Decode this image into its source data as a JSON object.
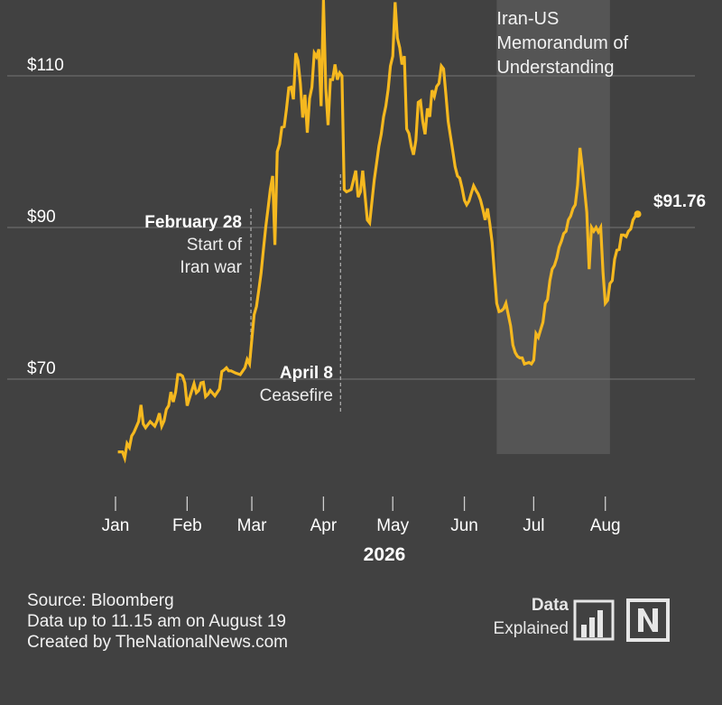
{
  "chart_data": {
    "type": "line",
    "title": "",
    "xlabel": "2026",
    "ylabel": "",
    "y_ticks": [
      {
        "value": 70,
        "label": "$70"
      },
      {
        "value": 90,
        "label": "$90"
      },
      {
        "value": 110,
        "label": "$110"
      }
    ],
    "x_ticks": [
      {
        "value": 0,
        "label": "Jan"
      },
      {
        "value": 31,
        "label": "Feb"
      },
      {
        "value": 59,
        "label": "Mar"
      },
      {
        "value": 90,
        "label": "Apr"
      },
      {
        "value": 120,
        "label": "May"
      },
      {
        "value": 151,
        "label": "Jun"
      },
      {
        "value": 181,
        "label": "Jul"
      },
      {
        "value": 212,
        "label": "Aug"
      }
    ],
    "xlim": [
      0,
      242
    ],
    "ylim": [
      55,
      122
    ],
    "grid": "horizontal",
    "series": [
      {
        "name": "",
        "color": "#f5b81f",
        "points": [
          [
            1,
            60.4
          ],
          [
            3,
            60.4
          ],
          [
            4,
            59.6
          ],
          [
            5,
            61.5
          ],
          [
            6,
            61.0
          ],
          [
            7,
            62.5
          ],
          [
            8,
            63.0
          ],
          [
            10,
            64.4
          ],
          [
            11,
            66.6
          ],
          [
            12,
            64.1
          ],
          [
            13,
            63.6
          ],
          [
            15,
            64.4
          ],
          [
            17,
            63.8
          ],
          [
            18,
            64.5
          ],
          [
            19,
            65.5
          ],
          [
            20,
            63.8
          ],
          [
            21,
            64.5
          ],
          [
            22,
            66.0
          ],
          [
            23,
            66.5
          ],
          [
            24,
            68.3
          ],
          [
            25,
            67.0
          ],
          [
            26,
            68.3
          ],
          [
            27,
            70.6
          ],
          [
            28,
            70.6
          ],
          [
            29,
            70.4
          ],
          [
            30,
            69.5
          ],
          [
            31,
            66.5
          ],
          [
            32,
            67.5
          ],
          [
            34,
            69.4
          ],
          [
            35,
            68.2
          ],
          [
            36,
            68.5
          ],
          [
            37,
            69.5
          ],
          [
            38,
            69.6
          ],
          [
            39,
            67.7
          ],
          [
            40,
            68.0
          ],
          [
            41,
            68.5
          ],
          [
            43,
            67.8
          ],
          [
            45,
            68.7
          ],
          [
            46,
            71.0
          ],
          [
            47,
            71.2
          ],
          [
            48,
            71.5
          ],
          [
            49,
            71.1
          ],
          [
            50,
            71.1
          ],
          [
            52,
            70.8
          ],
          [
            54,
            70.6
          ],
          [
            56,
            71.5
          ],
          [
            57,
            72.6
          ],
          [
            58,
            72.0
          ],
          [
            60,
            78.5
          ],
          [
            61,
            79.6
          ],
          [
            62,
            81.7
          ],
          [
            63,
            84.0
          ],
          [
            64,
            87.0
          ],
          [
            65,
            90.0
          ],
          [
            66,
            92.5
          ],
          [
            67,
            95.0
          ],
          [
            68,
            96.8
          ],
          [
            69,
            87.7
          ],
          [
            70,
            100.0
          ],
          [
            71,
            101.0
          ],
          [
            72,
            103.2
          ],
          [
            73,
            103.3
          ],
          [
            74,
            105.6
          ],
          [
            75,
            108.4
          ],
          [
            76,
            108.5
          ],
          [
            77,
            106.9
          ],
          [
            78,
            113.0
          ],
          [
            79,
            112.0
          ],
          [
            80,
            109.0
          ],
          [
            81,
            104.5
          ],
          [
            82,
            107.5
          ],
          [
            83,
            102.5
          ],
          [
            84,
            107.0
          ],
          [
            85,
            108.5
          ],
          [
            86,
            113.0
          ],
          [
            87,
            112.5
          ],
          [
            88,
            113.5
          ],
          [
            89,
            106.0
          ],
          [
            90,
            120.0
          ],
          [
            91,
            108.3
          ],
          [
            92,
            103.5
          ],
          [
            93,
            109.5
          ],
          [
            94,
            109.5
          ],
          [
            95,
            111.5
          ],
          [
            96,
            109.5
          ],
          [
            97,
            110.4
          ],
          [
            98,
            110.0
          ],
          [
            99,
            95.0
          ],
          [
            100,
            94.7
          ],
          [
            102,
            95.0
          ],
          [
            104,
            97.5
          ],
          [
            105,
            94.0
          ],
          [
            106,
            94.7
          ],
          [
            107,
            97.5
          ],
          [
            109,
            91.0
          ],
          [
            110,
            90.6
          ],
          [
            112,
            96.3
          ],
          [
            113,
            98.5
          ],
          [
            114,
            100.7
          ],
          [
            115,
            102.3
          ],
          [
            116,
            104.6
          ],
          [
            117,
            106.0
          ],
          [
            118,
            108.2
          ],
          [
            119,
            111.3
          ],
          [
            120,
            112.6
          ],
          [
            121,
            119.7
          ],
          [
            122,
            115.0
          ],
          [
            123,
            113.7
          ],
          [
            124,
            111.5
          ],
          [
            125,
            112.6
          ],
          [
            126,
            103.0
          ],
          [
            127,
            102.4
          ],
          [
            128,
            100.7
          ],
          [
            129,
            99.6
          ],
          [
            130,
            101.5
          ],
          [
            131,
            106.5
          ],
          [
            132,
            106.7
          ],
          [
            133,
            103.9
          ],
          [
            134,
            102.3
          ],
          [
            135,
            105.7
          ],
          [
            136,
            104.6
          ],
          [
            137,
            108.1
          ],
          [
            138,
            107.3
          ],
          [
            139,
            108.6
          ],
          [
            140,
            109.0
          ],
          [
            141,
            111.3
          ],
          [
            142,
            110.9
          ],
          [
            143,
            107.5
          ],
          [
            144,
            104.0
          ],
          [
            145,
            102.0
          ],
          [
            146,
            100.0
          ],
          [
            147,
            98.0
          ],
          [
            148,
            96.8
          ],
          [
            149,
            96.5
          ],
          [
            150,
            95.2
          ],
          [
            151,
            93.6
          ],
          [
            152,
            93.0
          ],
          [
            153,
            93.5
          ],
          [
            154,
            94.5
          ],
          [
            155,
            95.5
          ],
          [
            156,
            94.9
          ],
          [
            157,
            94.4
          ],
          [
            158,
            93.6
          ],
          [
            159,
            92.4
          ],
          [
            160,
            91.0
          ],
          [
            161,
            92.5
          ],
          [
            162,
            90.5
          ],
          [
            163,
            88.0
          ],
          [
            164,
            84.0
          ],
          [
            165,
            80.0
          ],
          [
            166,
            78.9
          ],
          [
            167,
            79.0
          ],
          [
            168,
            79.3
          ],
          [
            169,
            80.0
          ],
          [
            170,
            78.5
          ],
          [
            171,
            77.0
          ],
          [
            172,
            74.5
          ],
          [
            173,
            73.5
          ],
          [
            174,
            73.0
          ],
          [
            175,
            72.8
          ],
          [
            176,
            72.8
          ],
          [
            177,
            72.0
          ],
          [
            179,
            72.2
          ],
          [
            180,
            72.0
          ],
          [
            181,
            72.5
          ],
          [
            182,
            76.0
          ],
          [
            183,
            75.5
          ],
          [
            184,
            76.5
          ],
          [
            185,
            77.5
          ],
          [
            186,
            80.0
          ],
          [
            187,
            80.5
          ],
          [
            188,
            83.0
          ],
          [
            189,
            84.5
          ],
          [
            190,
            85.0
          ],
          [
            191,
            86.0
          ],
          [
            192,
            87.4
          ],
          [
            193,
            88.2
          ],
          [
            194,
            89.2
          ],
          [
            195,
            89.5
          ],
          [
            196,
            91.0
          ],
          [
            197,
            91.5
          ],
          [
            198,
            92.5
          ],
          [
            199,
            93.0
          ],
          [
            200,
            95.6
          ],
          [
            201,
            100.5
          ],
          [
            202,
            98.0
          ],
          [
            203,
            95.0
          ],
          [
            204,
            92.0
          ],
          [
            205,
            84.5
          ],
          [
            206,
            90.0
          ],
          [
            207,
            89.5
          ],
          [
            208,
            90.0
          ],
          [
            209,
            89.4
          ],
          [
            210,
            90.0
          ],
          [
            211,
            84.0
          ],
          [
            212,
            80.0
          ],
          [
            213,
            80.4
          ],
          [
            214,
            82.6
          ],
          [
            215,
            83.0
          ],
          [
            216,
            85.8
          ],
          [
            217,
            87.0
          ],
          [
            218,
            87.1
          ],
          [
            219,
            89.0
          ],
          [
            220,
            89.0
          ],
          [
            221,
            88.8
          ],
          [
            222,
            89.5
          ],
          [
            223,
            89.8
          ],
          [
            224,
            91.0
          ],
          [
            225,
            91.5
          ],
          [
            226,
            91.76
          ]
        ]
      }
    ],
    "last_value_label": "$91.76",
    "shaded_region": {
      "x_start": 165,
      "x_end": 214,
      "label": [
        "Iran-US",
        "Memorandum of",
        "Understanding"
      ]
    },
    "annotations": [
      {
        "x": 59,
        "title": "February 28",
        "lines": [
          "Start of",
          "Iran war"
        ]
      },
      {
        "x": 97,
        "title": "April 8",
        "lines": [
          "Ceasefire"
        ]
      }
    ]
  },
  "footer": {
    "source": "Source: Bloomberg",
    "data_up_to": "Data up to 11.15 am on August 19",
    "created_by": "Created by TheNationalNews.com"
  },
  "branding": {
    "data_word": "Data",
    "explained_word": "Explained",
    "icons": [
      "bar-chart-logo-icon",
      "the-national-n-logo-icon"
    ]
  },
  "colors": {
    "background": "#414141",
    "line": "#f5b81f",
    "grid": "#6b6b6b",
    "shade": "#555555"
  }
}
